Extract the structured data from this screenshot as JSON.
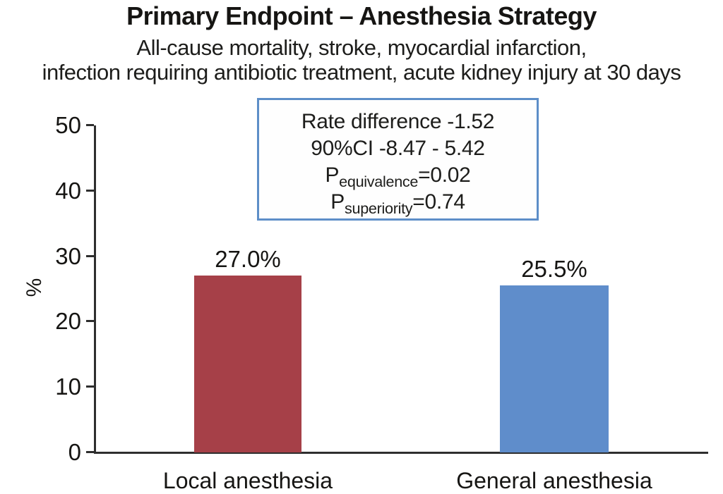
{
  "header": {
    "title": "Primary Endpoint – Anesthesia Strategy",
    "subtitle_line1": "All-cause mortality, stroke, myocardial infarction,",
    "subtitle_line2": "infection requiring antibiotic treatment, acute kidney injury at 30 days"
  },
  "annotation": {
    "line1": "Rate difference -1.52",
    "line2": "90%CI -8.47 - 5.42",
    "p_equivalence": {
      "base": "P",
      "sub": "equivalence",
      "value": "=0.02"
    },
    "p_superiority": {
      "base": "P",
      "sub": "superiority",
      "value": "=0.74"
    },
    "border_color": "#5d8ec8"
  },
  "chart_data": {
    "type": "bar",
    "title": "Primary Endpoint – Anesthesia Strategy",
    "subtitle": "All-cause mortality, stroke, myocardial infarction, infection requiring antibiotic treatment, acute kidney injury at 30 days",
    "categories": [
      "Local anesthesia",
      "General anesthesia"
    ],
    "values": [
      27.0,
      25.5
    ],
    "value_labels": [
      "27.0%",
      "25.5%"
    ],
    "bar_colors": [
      "#a64048",
      "#5f8dcb"
    ],
    "axis_color": "#2e2e2e",
    "xlabel": "",
    "ylabel": "%",
    "ylim": [
      0,
      50
    ],
    "yticks": [
      0,
      10,
      20,
      30,
      40,
      50
    ],
    "grid": false,
    "legend": false
  }
}
